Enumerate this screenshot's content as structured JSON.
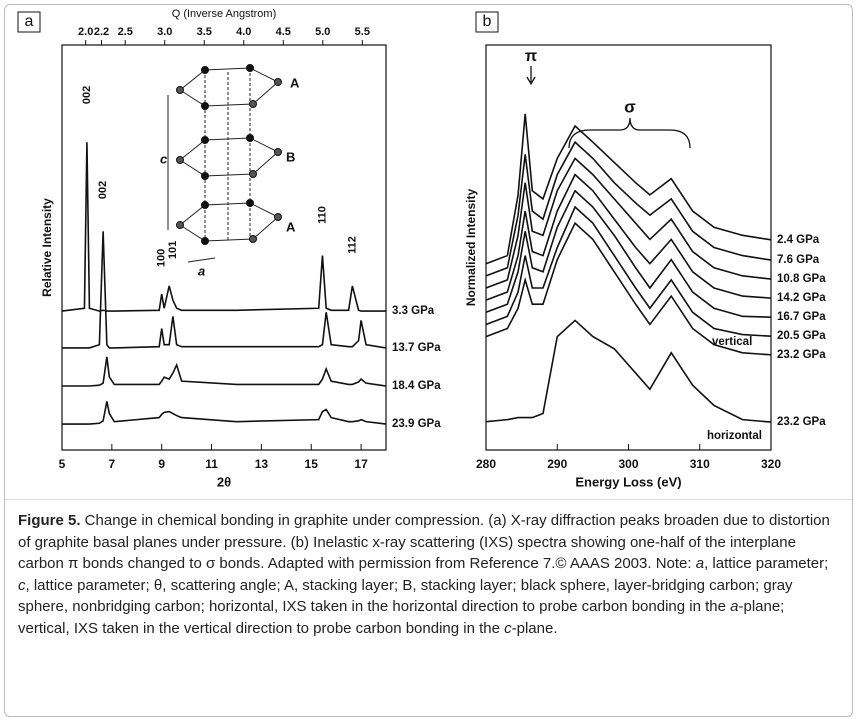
{
  "chart_data": [
    {
      "type": "line",
      "panel": "a",
      "color": "#111",
      "x": [
        5,
        5.9,
        6.0,
        6.1,
        6.5,
        6.65,
        6.8,
        6.9,
        7.1,
        8.9,
        9.0,
        9.1,
        9.3,
        9.45,
        9.6,
        9.8,
        12,
        15.3,
        15.45,
        15.6,
        15.8,
        16.5,
        16.65,
        16.9,
        17.0,
        17.2,
        18
      ],
      "xlim": [
        5,
        18
      ],
      "xticks": [
        5,
        7,
        9,
        11,
        13,
        15,
        17
      ],
      "xlabel": "2θ",
      "x2label": "Q (Inverse Angstrom)",
      "x2lim": [
        1.7,
        5.8
      ],
      "x2ticks": [
        {
          "value": 2,
          "label": "2.0"
        },
        2.2,
        2.5,
        {
          "value": 3,
          "label": "3.0"
        },
        3.5,
        {
          "value": 4,
          "label": "4.0"
        },
        4.5,
        {
          "value": 5,
          "label": "5.0"
        },
        5.5
      ],
      "ylabel": "Relative Intensity",
      "ylim": [
        0,
        10
      ],
      "series": [
        {
          "name": "3.3 GPa",
          "values": [
            3.43,
            3.5,
            7.6,
            3.5,
            3.43,
            3.45,
            3.43,
            3.43,
            3.43,
            3.45,
            3.85,
            3.5,
            4.05,
            3.7,
            3.5,
            3.45,
            3.45,
            3.5,
            4.8,
            3.5,
            3.45,
            3.45,
            4.05,
            3.45,
            3.43,
            3.43,
            3.43
          ]
        },
        {
          "name": "13.7 GPa",
          "values": [
            2.52,
            2.52,
            2.52,
            2.52,
            2.6,
            5.4,
            2.6,
            2.52,
            2.52,
            2.55,
            3.0,
            2.6,
            2.6,
            3.3,
            2.6,
            2.55,
            2.55,
            2.55,
            2.6,
            3.4,
            2.6,
            2.55,
            2.55,
            2.7,
            3.2,
            2.6,
            2.52
          ]
        },
        {
          "name": "18.4 GPa",
          "values": [
            1.58,
            1.58,
            1.58,
            1.58,
            1.6,
            1.65,
            2.3,
            1.8,
            1.62,
            1.62,
            1.7,
            1.8,
            1.75,
            1.9,
            2.1,
            1.7,
            1.62,
            1.62,
            1.75,
            2.0,
            1.7,
            1.62,
            1.62,
            1.68,
            1.75,
            1.65,
            1.58
          ]
        },
        {
          "name": "23.9 GPa",
          "values": [
            0.64,
            0.64,
            0.64,
            0.64,
            0.66,
            0.72,
            1.2,
            0.9,
            0.7,
            0.8,
            0.88,
            0.93,
            0.95,
            0.9,
            0.85,
            0.8,
            0.7,
            0.75,
            0.95,
            1.0,
            0.8,
            0.7,
            0.7,
            0.72,
            0.75,
            0.7,
            0.64
          ]
        }
      ],
      "annotations": [
        "002",
        "002",
        "100",
        "101",
        "110",
        "112"
      ],
      "inset_labels": [
        "A",
        "B",
        "A",
        "c",
        "a"
      ]
    },
    {
      "type": "line",
      "panel": "b",
      "color": "#111",
      "x": [
        280,
        283,
        284.5,
        285.5,
        286.5,
        288,
        290,
        292.5,
        295,
        298,
        301,
        303,
        306,
        309,
        312,
        316,
        320
      ],
      "xlim": [
        280,
        320
      ],
      "xticks": [
        280,
        290,
        300,
        310,
        320
      ],
      "xlabel": "Energy Loss (eV)",
      "ylabel": "Normalized Intensity",
      "ylim": [
        0,
        10
      ],
      "series": [
        {
          "name": "2.4 GPa",
          "values": [
            4.6,
            4.8,
            6.3,
            8.3,
            6.4,
            6.2,
            7.2,
            8.0,
            7.6,
            7.1,
            6.6,
            6.3,
            6.7,
            5.9,
            5.5,
            5.3,
            5.19
          ]
        },
        {
          "name": "7.6 GPa",
          "values": [
            4.3,
            4.5,
            5.8,
            7.3,
            5.9,
            5.7,
            6.8,
            7.6,
            7.2,
            6.6,
            6.1,
            5.8,
            6.2,
            5.4,
            5.0,
            4.8,
            4.69
          ]
        },
        {
          "name": "10.8 GPa",
          "values": [
            4.0,
            4.2,
            5.3,
            6.6,
            5.4,
            5.3,
            6.4,
            7.2,
            6.8,
            6.2,
            5.6,
            5.2,
            5.7,
            4.9,
            4.5,
            4.3,
            4.22
          ]
        },
        {
          "name": "14.2 GPa",
          "values": [
            3.7,
            3.9,
            4.8,
            5.9,
            4.9,
            4.8,
            5.9,
            6.8,
            6.4,
            5.7,
            5.0,
            4.6,
            5.2,
            4.4,
            4.0,
            3.8,
            3.75
          ]
        },
        {
          "name": "16.7 GPa",
          "values": [
            3.4,
            3.6,
            4.4,
            5.4,
            4.5,
            4.4,
            5.5,
            6.4,
            6.0,
            5.3,
            4.5,
            4.0,
            4.7,
            3.9,
            3.5,
            3.3,
            3.28
          ]
        },
        {
          "name": "20.5 GPa",
          "values": [
            3.1,
            3.3,
            3.9,
            4.8,
            4.0,
            4.0,
            5.0,
            6.0,
            5.6,
            4.8,
            4.0,
            3.5,
            4.2,
            3.4,
            3.0,
            2.85,
            2.81
          ]
        },
        {
          "name": "23.2 GPa",
          "values": [
            2.8,
            3.0,
            3.5,
            4.2,
            3.6,
            3.6,
            4.7,
            5.6,
            5.2,
            4.4,
            3.6,
            3.1,
            3.8,
            3.0,
            2.6,
            2.4,
            2.35
          ]
        },
        {
          "name": "23.2 GPa",
          "values": [
            0.7,
            0.75,
            0.8,
            0.8,
            0.8,
            0.9,
            2.8,
            3.2,
            2.8,
            2.5,
            1.9,
            1.5,
            2.4,
            1.6,
            1.1,
            0.75,
            0.69
          ]
        }
      ],
      "annotations": [
        "vertical",
        "horizontal",
        "π",
        "σ"
      ]
    }
  ],
  "caption": {
    "label": "Figure 5.",
    "parts": [
      {
        "text": " Change in chemical bonding in graphite under compression. (a) X-ray diffraction peaks broaden due to distortion of graphite basal planes under pressure. (b) Inelastic x-ray scattering (IXS) spectra showing one-half of the interplane carbon π bonds changed to σ bonds. Adapted with permission from Reference 7.© AAAS 2003. Note: ",
        "italic": false
      },
      {
        "text": "a",
        "italic": true
      },
      {
        "text": ", lattice parameter; ",
        "italic": false
      },
      {
        "text": "c",
        "italic": true
      },
      {
        "text": ", lattice parameter; θ, scattering angle; A, stacking layer; B, stacking layer; black sphere, layer-bridging carbon; gray sphere, nonbridging carbon; horizontal, IXS taken in the horizontal direction to probe carbon bonding in the ",
        "italic": false
      },
      {
        "text": "a",
        "italic": true
      },
      {
        "text": "-plane; vertical, IXS taken in the vertical direction to probe carbon bonding in the ",
        "italic": false
      },
      {
        "text": "c",
        "italic": true
      },
      {
        "text": "-plane.",
        "italic": false
      }
    ]
  }
}
